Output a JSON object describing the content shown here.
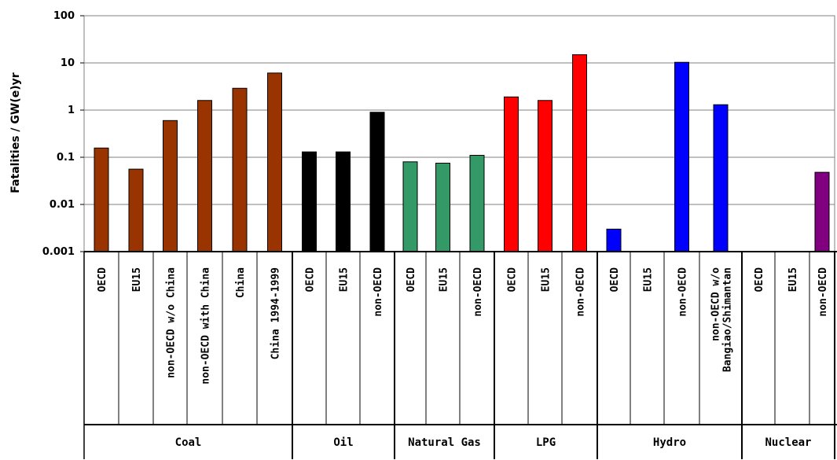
{
  "chart_data": {
    "type": "bar",
    "title": "",
    "ylabel": "Fatalities / GW(e)yr",
    "xlabel": "",
    "yscale": "log",
    "ylim": [
      0.001,
      100
    ],
    "yticks": [
      "100",
      "10",
      "1",
      "0.1",
      "0.01",
      "0.001"
    ],
    "grid": true,
    "legend": "none",
    "groups": [
      {
        "name": "Coal",
        "color": "#993300",
        "categories": [
          {
            "label": [
              "OECD"
            ],
            "value": 0.157
          },
          {
            "label": [
              "EU15"
            ],
            "value": 0.056
          },
          {
            "label": [
              "non-OECD w/o  China"
            ],
            "value": 0.6
          },
          {
            "label": [
              "non-OECD with China"
            ],
            "value": 1.6
          },
          {
            "label": [
              "China"
            ],
            "value": 2.9
          },
          {
            "label": [
              "China 1994-1999"
            ],
            "value": 6.1
          }
        ]
      },
      {
        "name": "Oil",
        "color": "#000000",
        "categories": [
          {
            "label": [
              "OECD"
            ],
            "value": 0.13
          },
          {
            "label": [
              "EU15"
            ],
            "value": 0.13
          },
          {
            "label": [
              "non-OECD"
            ],
            "value": 0.9
          }
        ]
      },
      {
        "name": "Natural Gas",
        "color": "#339966",
        "categories": [
          {
            "label": [
              "OECD"
            ],
            "value": 0.08
          },
          {
            "label": [
              "EU15"
            ],
            "value": 0.075
          },
          {
            "label": [
              "non-OECD"
            ],
            "value": 0.11
          }
        ]
      },
      {
        "name": "LPG",
        "color": "#ff0000",
        "categories": [
          {
            "label": [
              "OECD"
            ],
            "value": 1.9
          },
          {
            "label": [
              "EU15"
            ],
            "value": 1.6
          },
          {
            "label": [
              "non-OECD"
            ],
            "value": 14.9
          }
        ]
      },
      {
        "name": "Hydro",
        "color": "#0000ff",
        "categories": [
          {
            "label": [
              "OECD"
            ],
            "value": 0.003
          },
          {
            "label": [
              "EU15"
            ],
            "value": null
          },
          {
            "label": [
              "non-OECD"
            ],
            "value": 10.3
          },
          {
            "label": [
              "non-OECD w/o",
              "Bangiao/Shimantan"
            ],
            "value": 1.3
          }
        ]
      },
      {
        "name": "Nuclear",
        "color": "#800080",
        "categories": [
          {
            "label": [
              "OECD"
            ],
            "value": null
          },
          {
            "label": [
              "EU15"
            ],
            "value": null
          },
          {
            "label": [
              "non-OECD"
            ],
            "value": 0.048
          }
        ]
      }
    ]
  }
}
